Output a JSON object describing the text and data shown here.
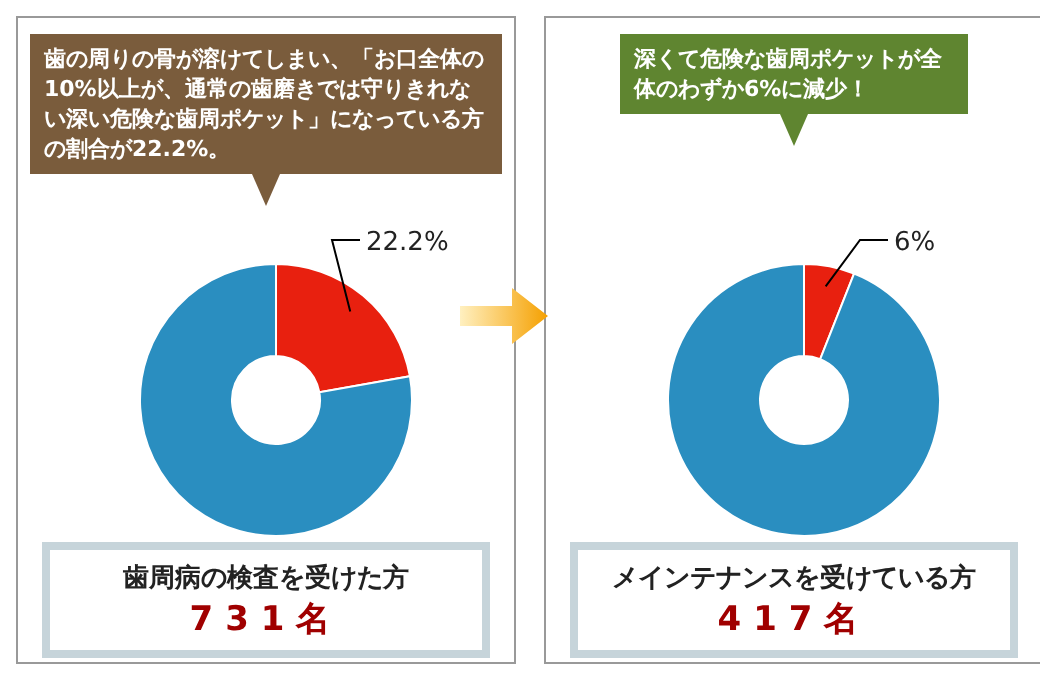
{
  "chart_data": [
    {
      "type": "donut",
      "title": "歯の周りの骨が溶けてしまい、「お口全体の10%以上が、通常の歯磨きでは守りきれない深い危険な歯周ポケット」になっている方の割合が22.2%。",
      "categories": [
        null,
        null
      ],
      "values": [
        22.2,
        77.8
      ],
      "colors": [
        "#e8200f",
        "#2a8ec0"
      ],
      "value_labels": [
        "22.2%",
        null
      ],
      "annotations": [
        "歯周病の検査を受けた方",
        "731名"
      ]
    },
    {
      "type": "donut",
      "title": "深くて危険な歯周ポケットが全体のわずか6%に減少！",
      "categories": [
        null,
        null
      ],
      "values": [
        6,
        94
      ],
      "colors": [
        "#e8200f",
        "#2a8ec0"
      ],
      "value_labels": [
        "6%",
        null
      ],
      "annotations": [
        "メインテナンスを受けている方",
        "417名"
      ]
    }
  ]
}
